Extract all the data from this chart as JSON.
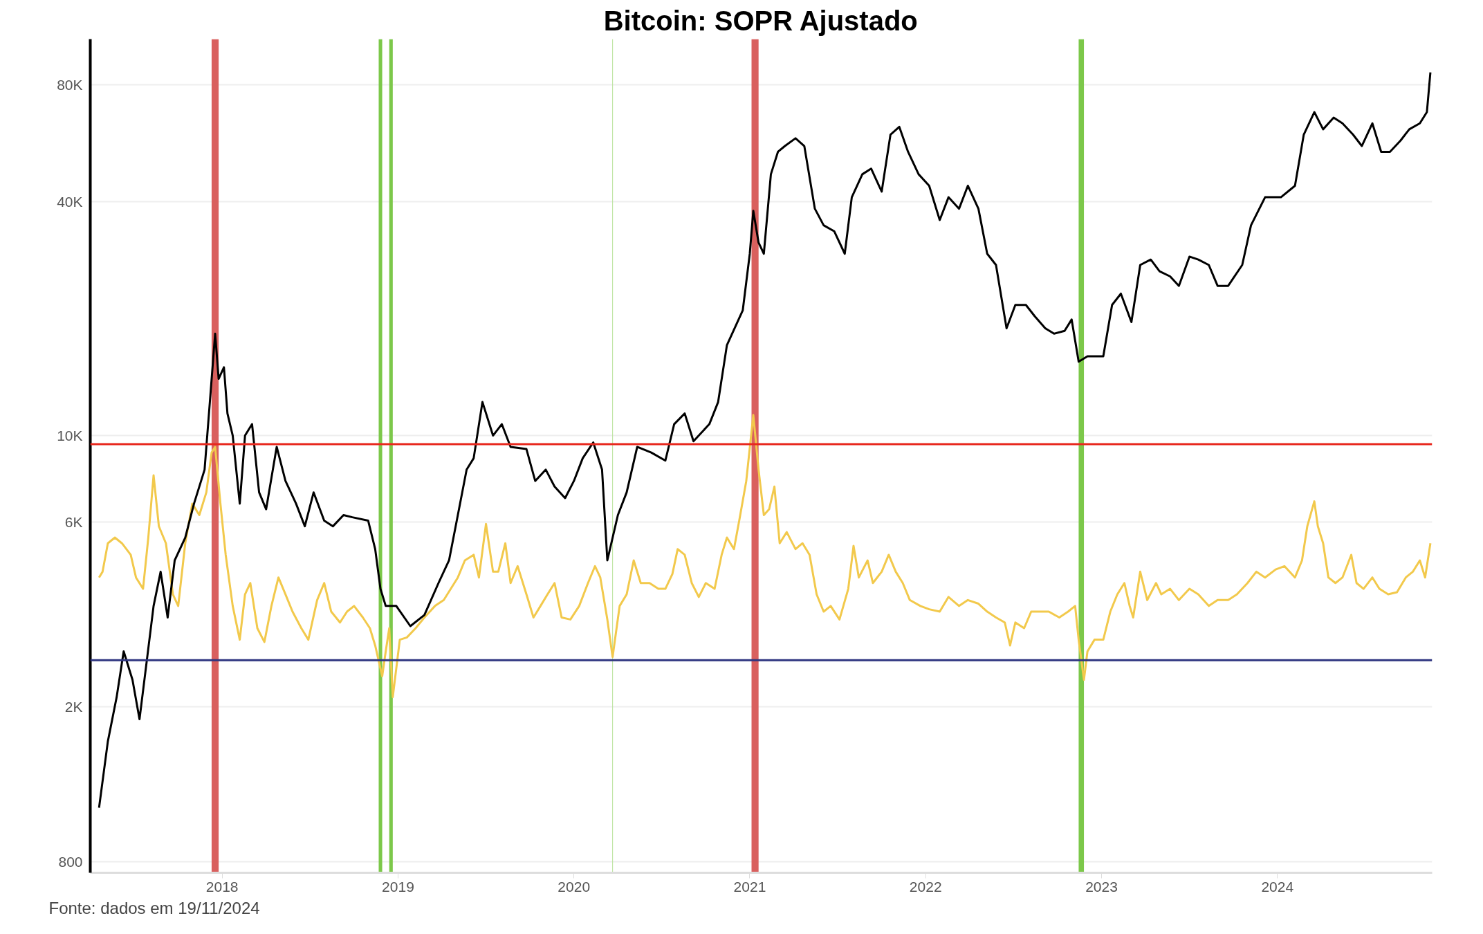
{
  "chart_data": {
    "type": "line",
    "title": "Bitcoin: SOPR Ajustado",
    "annotations": [
      "Fonte: dados em 19/11/2024"
    ],
    "log": true,
    "grid": "y",
    "line_style": "solid",
    "xlim": [
      2017.25,
      2024.88
    ],
    "xticks": [
      2018,
      2019,
      2020,
      2021,
      2022,
      2023,
      2024
    ],
    "ylim": [
      748,
      105000
    ],
    "yticks": [
      800,
      {
        "value": 2000,
        "label": "2K"
      },
      {
        "value": 6000,
        "label": "6K"
      },
      {
        "value": 10000,
        "label": "10K"
      },
      {
        "value": 40000,
        "label": "40K"
      },
      {
        "value": 80000,
        "label": "80K"
      }
    ],
    "bands": [
      {
        "axis": "x",
        "from": 2017.94,
        "to": 2017.98,
        "color": "#d9605e"
      },
      {
        "axis": "x",
        "from": 2018.89,
        "to": 2018.91,
        "color": "#7cc84a"
      },
      {
        "axis": "x",
        "from": 2018.95,
        "to": 2018.97,
        "color": "#7cc84a"
      },
      {
        "axis": "x",
        "from": 2020.218,
        "to": 2020.222,
        "color": "#b9e29a"
      },
      {
        "axis": "x",
        "from": 2021.01,
        "to": 2021.05,
        "color": "#d9605e"
      },
      {
        "axis": "x",
        "from": 2022.87,
        "to": 2022.9,
        "color": "#7cc84a"
      }
    ],
    "ref_lines": [
      {
        "axis": "y",
        "value": 9500,
        "color": "#e8281e"
      },
      {
        "axis": "y",
        "value": 2640,
        "color": "#2e3580"
      }
    ],
    "series": [
      {
        "color": "#f2c94c",
        "x": [
          2017.3,
          2017.32,
          2017.35,
          2017.39,
          2017.43,
          2017.48,
          2017.51,
          2017.55,
          2017.58,
          2017.61,
          2017.64,
          2017.68,
          2017.72,
          2017.75,
          2017.79,
          2017.83,
          2017.87,
          2017.91,
          2017.94,
          2017.96,
          2017.99,
          2018.02,
          2018.06,
          2018.1,
          2018.13,
          2018.16,
          2018.2,
          2018.24,
          2018.28,
          2018.32,
          2018.36,
          2018.4,
          2018.45,
          2018.49,
          2018.54,
          2018.58,
          2018.62,
          2018.67,
          2018.71,
          2018.75,
          2018.8,
          2018.84,
          2018.87,
          2018.91,
          2018.93,
          2018.95,
          2018.97,
          2019.01,
          2019.05,
          2019.1,
          2019.15,
          2019.21,
          2019.26,
          2019.3,
          2019.34,
          2019.38,
          2019.43,
          2019.46,
          2019.5,
          2019.54,
          2019.57,
          2019.61,
          2019.64,
          2019.68,
          2019.73,
          2019.77,
          2019.81,
          2019.85,
          2019.89,
          2019.93,
          2019.98,
          2020.03,
          2020.08,
          2020.12,
          2020.15,
          2020.19,
          2020.22,
          2020.26,
          2020.3,
          2020.34,
          2020.38,
          2020.43,
          2020.48,
          2020.52,
          2020.56,
          2020.59,
          2020.63,
          2020.67,
          2020.71,
          2020.75,
          2020.8,
          2020.84,
          2020.87,
          2020.91,
          2020.94,
          2020.98,
          2021.02,
          2021.05,
          2021.08,
          2021.11,
          2021.14,
          2021.17,
          2021.21,
          2021.26,
          2021.3,
          2021.34,
          2021.38,
          2021.42,
          2021.46,
          2021.51,
          2021.56,
          2021.59,
          2021.62,
          2021.67,
          2021.7,
          2021.75,
          2021.79,
          2021.83,
          2021.87,
          2021.91,
          2021.97,
          2022.02,
          2022.08,
          2022.13,
          2022.19,
          2022.24,
          2022.3,
          2022.35,
          2022.4,
          2022.45,
          2022.48,
          2022.51,
          2022.56,
          2022.6,
          2022.65,
          2022.7,
          2022.76,
          2022.81,
          2022.85,
          2022.87,
          2022.9,
          2022.92,
          2022.96,
          2023.01,
          2023.05,
          2023.09,
          2023.13,
          2023.16,
          2023.18,
          2023.22,
          2023.26,
          2023.31,
          2023.34,
          2023.39,
          2023.44,
          2023.5,
          2023.55,
          2023.61,
          2023.66,
          2023.72,
          2023.77,
          2023.83,
          2023.88,
          2023.93,
          2023.99,
          2024.04,
          2024.1,
          2024.14,
          2024.17,
          2024.21,
          2024.23,
          2024.26,
          2024.29,
          2024.33,
          2024.37,
          2024.42,
          2024.45,
          2024.49,
          2024.54,
          2024.58,
          2024.63,
          2024.68,
          2024.73,
          2024.77,
          2024.81,
          2024.84,
          2024.87
        ],
        "values": [
          4310,
          4460,
          5280,
          5460,
          5280,
          4930,
          4310,
          4030,
          5460,
          7900,
          5840,
          5280,
          3900,
          3640,
          5280,
          6680,
          6240,
          7140,
          9040,
          9350,
          6680,
          4930,
          3640,
          2980,
          3900,
          4170,
          3190,
          2940,
          3640,
          4310,
          3900,
          3520,
          3190,
          2980,
          3770,
          4170,
          3520,
          3300,
          3520,
          3640,
          3400,
          3190,
          2880,
          2400,
          2780,
          3190,
          2120,
          2980,
          3020,
          3190,
          3400,
          3640,
          3770,
          4030,
          4310,
          4770,
          4930,
          4310,
          5920,
          4460,
          4460,
          5280,
          4170,
          4610,
          3900,
          3400,
          3640,
          3900,
          4170,
          3400,
          3360,
          3640,
          4170,
          4610,
          4310,
          3360,
          2690,
          3640,
          3900,
          4770,
          4170,
          4170,
          4030,
          4030,
          4400,
          5100,
          4930,
          4170,
          3840,
          4170,
          4030,
          4930,
          5460,
          5100,
          6040,
          7640,
          11300,
          8170,
          6240,
          6460,
          7390,
          5280,
          5640,
          5100,
          5280,
          4930,
          3900,
          3520,
          3640,
          3360,
          4030,
          5200,
          4310,
          4770,
          4170,
          4460,
          4930,
          4460,
          4170,
          3770,
          3640,
          3570,
          3520,
          3840,
          3640,
          3770,
          3690,
          3520,
          3400,
          3300,
          2880,
          3300,
          3190,
          3520,
          3520,
          3520,
          3400,
          3520,
          3640,
          2980,
          2350,
          2780,
          2980,
          2980,
          3520,
          3900,
          4170,
          3640,
          3400,
          4460,
          3770,
          4170,
          3900,
          4030,
          3770,
          4030,
          3900,
          3640,
          3770,
          3770,
          3900,
          4170,
          4460,
          4310,
          4520,
          4610,
          4310,
          4770,
          5840,
          6770,
          5840,
          5280,
          4310,
          4170,
          4310,
          4930,
          4170,
          4030,
          4310,
          4030,
          3900,
          3950,
          4310,
          4460,
          4770,
          4310,
          5280
        ]
      },
      {
        "color": "#000000",
        "x": [
          2017.3,
          2017.35,
          2017.4,
          2017.44,
          2017.49,
          2017.53,
          2017.57,
          2017.61,
          2017.65,
          2017.69,
          2017.73,
          2017.79,
          2017.84,
          2017.9,
          2017.93,
          2017.96,
          2017.98,
          2018.01,
          2018.03,
          2018.06,
          2018.1,
          2018.13,
          2018.17,
          2018.21,
          2018.25,
          2018.31,
          2018.36,
          2018.42,
          2018.47,
          2018.52,
          2018.58,
          2018.63,
          2018.69,
          2018.74,
          2018.83,
          2018.87,
          2018.9,
          2018.93,
          2018.99,
          2019.07,
          2019.15,
          2019.23,
          2019.29,
          2019.34,
          2019.39,
          2019.43,
          2019.48,
          2019.54,
          2019.59,
          2019.64,
          2019.73,
          2019.78,
          2019.84,
          2019.89,
          2019.95,
          2020.0,
          2020.05,
          2020.11,
          2020.16,
          2020.19,
          2020.25,
          2020.3,
          2020.36,
          2020.44,
          2020.52,
          2020.57,
          2020.63,
          2020.68,
          2020.77,
          2020.82,
          2020.87,
          2020.96,
          2021.0,
          2021.02,
          2021.05,
          2021.08,
          2021.12,
          2021.16,
          2021.2,
          2021.26,
          2021.31,
          2021.37,
          2021.42,
          2021.48,
          2021.54,
          2021.58,
          2021.64,
          2021.69,
          2021.75,
          2021.8,
          2021.85,
          2021.9,
          2021.96,
          2022.02,
          2022.08,
          2022.13,
          2022.19,
          2022.24,
          2022.3,
          2022.35,
          2022.4,
          2022.46,
          2022.51,
          2022.57,
          2022.62,
          2022.68,
          2022.73,
          2022.79,
          2022.83,
          2022.87,
          2022.92,
          2023.01,
          2023.06,
          2023.11,
          2023.17,
          2023.22,
          2023.28,
          2023.33,
          2023.39,
          2023.44,
          2023.5,
          2023.55,
          2023.61,
          2023.66,
          2023.72,
          2023.8,
          2023.85,
          2023.93,
          2024.02,
          2024.1,
          2024.15,
          2024.21,
          2024.26,
          2024.32,
          2024.37,
          2024.43,
          2024.48,
          2024.54,
          2024.59,
          2024.64,
          2024.7,
          2024.75,
          2024.81,
          2024.85,
          2024.87
        ],
        "values": [
          1100,
          1630,
          2120,
          2780,
          2350,
          1860,
          2600,
          3640,
          4460,
          3400,
          4770,
          5460,
          6680,
          8170,
          12200,
          18300,
          14000,
          15000,
          11400,
          10000,
          6680,
          10000,
          10700,
          7140,
          6460,
          9350,
          7640,
          6680,
          5840,
          7140,
          6040,
          5840,
          6240,
          6160,
          6040,
          5100,
          4030,
          3640,
          3640,
          3230,
          3450,
          4170,
          4770,
          6240,
          8170,
          8740,
          12200,
          10000,
          10700,
          9350,
          9230,
          7640,
          8170,
          7390,
          6900,
          7640,
          8740,
          9600,
          8170,
          4770,
          6240,
          7140,
          9350,
          9040,
          8620,
          10700,
          11400,
          9670,
          10700,
          12200,
          17100,
          21000,
          29400,
          37900,
          31400,
          29400,
          47100,
          53800,
          55700,
          58300,
          55700,
          38400,
          34800,
          33600,
          29400,
          41100,
          47100,
          48700,
          42500,
          59600,
          62400,
          53800,
          47100,
          44000,
          35900,
          41100,
          38400,
          44000,
          38400,
          29400,
          27500,
          18900,
          21700,
          21700,
          20300,
          18900,
          18300,
          18600,
          19900,
          15500,
          16000,
          16000,
          21700,
          23200,
          19600,
          27500,
          28400,
          26500,
          25700,
          24300,
          28900,
          28400,
          27500,
          24300,
          24300,
          27500,
          34800,
          41100,
          41100,
          44000,
          59600,
          68100,
          61500,
          65900,
          63700,
          59600,
          55700,
          63700,
          53800,
          53800,
          57500,
          61500,
          63700,
          68100,
          86200
        ]
      }
    ]
  }
}
